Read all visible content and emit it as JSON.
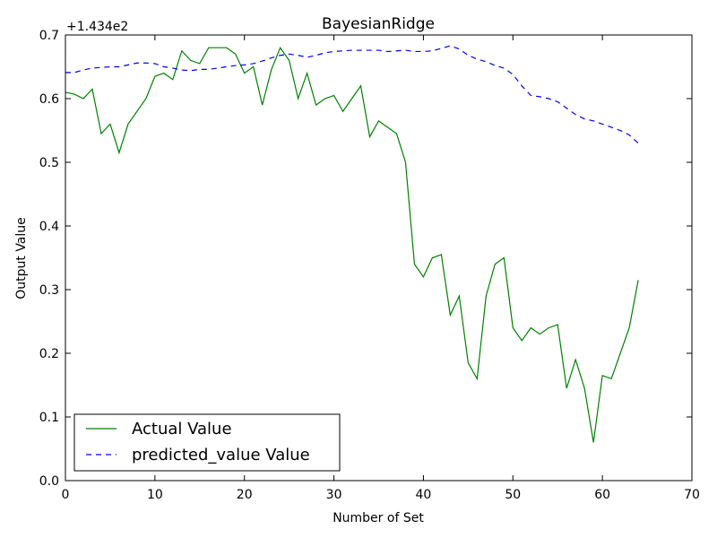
{
  "chart_data": {
    "type": "line",
    "title": "BayesianRidge",
    "xlabel": "Number of Set",
    "ylabel": "Output Value",
    "offset_label": "+1.434e2",
    "xlim": [
      0,
      70
    ],
    "ylim": [
      0.0,
      0.7
    ],
    "x_ticks": [
      0,
      10,
      20,
      30,
      40,
      50,
      60,
      70
    ],
    "y_ticks": [
      0.0,
      0.1,
      0.2,
      0.3,
      0.4,
      0.5,
      0.6,
      0.7
    ],
    "x_tick_labels": [
      "0",
      "10",
      "20",
      "30",
      "40",
      "50",
      "60",
      "70"
    ],
    "y_tick_labels": [
      "0.0",
      "0.1",
      "0.2",
      "0.3",
      "0.4",
      "0.5",
      "0.6",
      "0.7"
    ],
    "grid": false,
    "legend_position": "lower-left",
    "x": [
      0,
      1,
      2,
      3,
      4,
      5,
      6,
      7,
      8,
      9,
      10,
      11,
      12,
      13,
      14,
      15,
      16,
      17,
      18,
      19,
      20,
      21,
      22,
      23,
      24,
      25,
      26,
      27,
      28,
      29,
      30,
      31,
      32,
      33,
      34,
      35,
      36,
      37,
      38,
      39,
      40,
      41,
      42,
      43,
      44,
      45,
      46,
      47,
      48,
      49,
      50,
      51,
      52,
      53,
      54,
      55,
      56,
      57,
      58,
      59,
      60,
      61,
      62,
      63,
      64
    ],
    "series": [
      {
        "name": "Actual Value",
        "color": "#008000",
        "style": "solid",
        "values": [
          0.61,
          0.607,
          0.6,
          0.615,
          0.545,
          0.56,
          0.515,
          0.56,
          0.58,
          0.6,
          0.635,
          0.64,
          0.63,
          0.675,
          0.66,
          0.655,
          0.68,
          0.68,
          0.68,
          0.67,
          0.64,
          0.65,
          0.59,
          0.645,
          0.68,
          0.66,
          0.6,
          0.64,
          0.59,
          0.6,
          0.605,
          0.58,
          0.6,
          0.62,
          0.54,
          0.565,
          0.555,
          0.545,
          0.5,
          0.34,
          0.32,
          0.35,
          0.355,
          0.26,
          0.29,
          0.185,
          0.16,
          0.29,
          0.34,
          0.35,
          0.24,
          0.22,
          0.24,
          0.23,
          0.24,
          0.245,
          0.145,
          0.19,
          0.145,
          0.06,
          0.165,
          0.16,
          0.2,
          0.24,
          0.315
        ]
      },
      {
        "name": "predicted_value Value",
        "color": "#0000ff",
        "style": "dashed",
        "values": [
          0.641,
          0.641,
          0.645,
          0.648,
          0.649,
          0.65,
          0.65,
          0.653,
          0.656,
          0.656,
          0.655,
          0.65,
          0.648,
          0.645,
          0.644,
          0.646,
          0.646,
          0.648,
          0.65,
          0.652,
          0.653,
          0.655,
          0.659,
          0.664,
          0.668,
          0.67,
          0.668,
          0.665,
          0.668,
          0.672,
          0.674,
          0.675,
          0.676,
          0.676,
          0.676,
          0.676,
          0.674,
          0.675,
          0.676,
          0.674,
          0.674,
          0.675,
          0.679,
          0.683,
          0.678,
          0.668,
          0.662,
          0.658,
          0.652,
          0.648,
          0.638,
          0.62,
          0.605,
          0.603,
          0.6,
          0.595,
          0.585,
          0.575,
          0.568,
          0.565,
          0.56,
          0.555,
          0.55,
          0.543,
          0.53
        ]
      }
    ]
  }
}
